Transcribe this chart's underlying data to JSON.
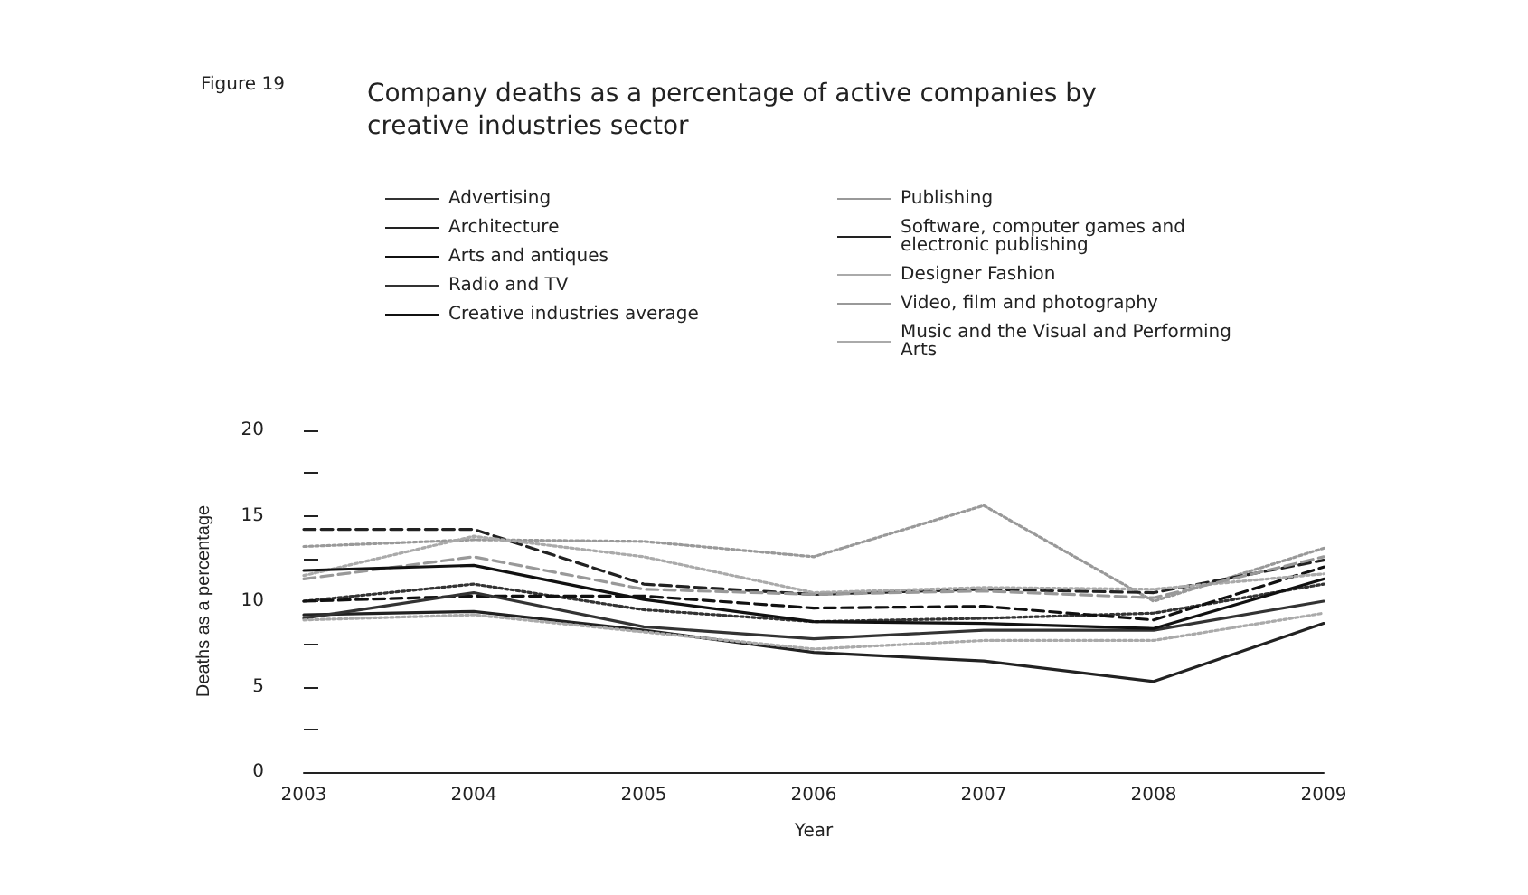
{
  "chart_data": {
    "type": "line",
    "title": "Company deaths as a percentage of active companies by creative industries sector",
    "annotations": [
      "Figure 19"
    ],
    "xlabel": "Year",
    "ylabel": "Deaths as a percentage",
    "categories": [
      "2003",
      "2004",
      "2005",
      "2006",
      "2007",
      "2008",
      "2009"
    ],
    "ylim": [
      0,
      20
    ],
    "yticks": [
      0,
      {
        "value": 2.5,
        "label": null
      },
      5,
      {
        "value": 7.5,
        "label": null
      },
      10,
      {
        "value": 12.5,
        "label": null
      },
      15,
      {
        "value": 17.5,
        "label": null
      },
      20
    ],
    "grid": false,
    "legend": "top",
    "marker": "none",
    "series": [
      {
        "name": "Advertising",
        "color": "#333333",
        "line_style": "dotted",
        "values": [
          10.0,
          11.0,
          9.5,
          8.8,
          9.0,
          9.3,
          11.0
        ]
      },
      {
        "name": "Publishing",
        "color": "#999999",
        "line_style": "dotted",
        "values": [
          13.2,
          13.6,
          13.5,
          12.6,
          15.6,
          10.0,
          13.1
        ]
      },
      {
        "name": "Architecture",
        "color": "#222222",
        "line_style": "solid",
        "values": [
          9.2,
          9.4,
          8.3,
          7.0,
          6.5,
          5.3,
          8.7
        ]
      },
      {
        "name": "Software, computer games and electronic publishing",
        "color": "#222222",
        "line_style": "dashed",
        "values": [
          14.2,
          14.2,
          11.0,
          10.4,
          10.7,
          10.5,
          12.4
        ]
      },
      {
        "name": "Arts and antiques",
        "color": "#111111",
        "line_style": "dashed",
        "values": [
          10.0,
          10.3,
          10.3,
          9.6,
          9.7,
          8.9,
          12.0
        ]
      },
      {
        "name": "Designer Fashion",
        "color": "#aaaaaa",
        "line_style": "dotted",
        "values": [
          11.5,
          13.8,
          12.6,
          10.5,
          10.8,
          10.7,
          11.6
        ]
      },
      {
        "name": "Radio and TV",
        "color": "#333333",
        "line_style": "solid",
        "values": [
          9.0,
          10.5,
          8.5,
          7.8,
          8.3,
          8.3,
          10.0
        ]
      },
      {
        "name": "Video, film and photography",
        "color": "#999999",
        "line_style": "dashed",
        "values": [
          11.3,
          12.6,
          10.7,
          10.4,
          10.6,
          10.2,
          12.6
        ]
      },
      {
        "name": "Creative industries average",
        "color": "#111111",
        "line_style": "solid",
        "values": [
          11.8,
          12.1,
          10.1,
          8.8,
          8.7,
          8.4,
          11.3
        ]
      },
      {
        "name": "Music and the Visual and Performing Arts",
        "color": "#aaaaaa",
        "line_style": "dotted",
        "values": [
          8.9,
          9.2,
          8.2,
          7.2,
          7.7,
          7.7,
          9.3
        ]
      }
    ]
  }
}
